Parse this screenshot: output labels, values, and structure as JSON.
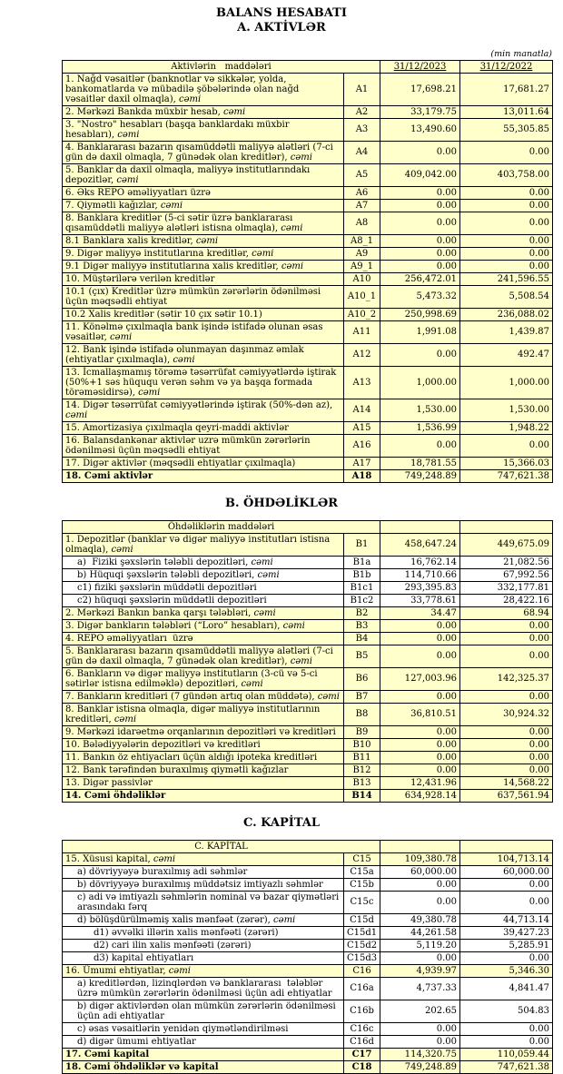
{
  "doc": {
    "title": "BALANS HESABATI",
    "subtitle": "A. AKTİVLƏR",
    "note": "(min manatla)",
    "col_2023": "31/12/2023",
    "col_2022": "31/12/2022"
  },
  "colors": {
    "row_yellow": "#FFFFCC",
    "row_white": "#FFFFFF",
    "border": "#000000"
  },
  "sections": [
    {
      "id": "A",
      "heading": "",
      "table_header": "Aktivlərin   maddələri",
      "show_dates": true,
      "rows": [
        {
          "label": "1. Nağd vəsaitlər (banknotlar və sikkələr, yolda, bankomatlarda və mübadilə şöbələrində olan nağd vəsaitlər daxil olmaqla), ",
          "italic": "cəmi",
          "code": "A1",
          "v2023": "17,698.21",
          "v2022": "17,681.27",
          "bold": false,
          "white": false,
          "indent": 0
        },
        {
          "label": "2. Mərkəzi Bankda müxbir hesab, ",
          "italic": "cəmi",
          "code": "A2",
          "v2023": "33,179.75",
          "v2022": "13,011.64",
          "bold": false,
          "white": false,
          "indent": 0
        },
        {
          "label": "3. \"Nostro\" hesabları (başqa banklardakı müxbir hesabları), ",
          "italic": "cəmi",
          "code": "A3",
          "v2023": "13,490.60",
          "v2022": "55,305.85",
          "bold": false,
          "white": false,
          "indent": 0
        },
        {
          "label": "4. Banklararası bazarın qısamüddətli maliyyə alətləri (7-ci gün də daxil olmaqla, 7 günədək olan kreditlər), ",
          "italic": "cəmi",
          "code": "A4",
          "v2023": "0.00",
          "v2022": "0.00",
          "bold": false,
          "white": false,
          "indent": 0
        },
        {
          "label": "5. Banklar da daxil olmaqla, maliyyə institutlarındakı depozitlər, ",
          "italic": "cəmi",
          "code": "A5",
          "v2023": "409,042.00",
          "v2022": "403,758.00",
          "bold": false,
          "white": false,
          "indent": 0
        },
        {
          "label": "6. Əks REPO əməliyyatları üzrə",
          "italic": "",
          "code": "A6",
          "v2023": "0.00",
          "v2022": "0.00",
          "bold": false,
          "white": false,
          "indent": 0
        },
        {
          "label": "7. Qiymətli kağızlar, ",
          "italic": "cəmi",
          "code": "A7",
          "v2023": "0.00",
          "v2022": "0.00",
          "bold": false,
          "white": false,
          "indent": 0
        },
        {
          "label": "8. Banklara kreditlər (5-ci sətir üzrə banklararası qısamüddətli maliyyə alətləri istisna olmaqla), ",
          "italic": "cəmi",
          "code": "A8",
          "v2023": "0.00",
          "v2022": "0.00",
          "bold": false,
          "white": false,
          "indent": 0
        },
        {
          "label": "8.1 Banklara xalis kreditlər, ",
          "italic": "cəmi",
          "code": "A8_1",
          "v2023": "0.00",
          "v2022": "0.00",
          "bold": false,
          "white": false,
          "indent": 0
        },
        {
          "label": "9. Digər maliyyə institutlarına kreditlər, ",
          "italic": "cəmi",
          "code": "A9",
          "v2023": "0.00",
          "v2022": "0.00",
          "bold": false,
          "white": false,
          "indent": 0
        },
        {
          "label": "9.1 Digər maliyyə institutlarına xalis kreditlər, ",
          "italic": "cəmi",
          "code": "A9_1",
          "v2023": "0.00",
          "v2022": "0.00",
          "bold": false,
          "white": false,
          "indent": 0
        },
        {
          "label": "10. Müştərilərə verilən kreditlər",
          "italic": "",
          "code": "A10",
          "v2023": "256,472.01",
          "v2022": "241,596.55",
          "bold": false,
          "white": false,
          "indent": 0
        },
        {
          "label": "10.1 (çıx) Kreditlər üzrə mümkün zərərlərin ödənilməsi üçün məqsədli ehtiyat",
          "italic": "",
          "code": "A10_1",
          "v2023": "5,473.32",
          "v2022": "5,508.54",
          "bold": false,
          "white": false,
          "indent": 0
        },
        {
          "label": "10.2 Xalis kreditlər (sətir 10 çıx sətir 10.1)",
          "italic": "",
          "code": "A10_2",
          "v2023": "250,998.69",
          "v2022": "236,088.02",
          "bold": false,
          "white": false,
          "indent": 0
        },
        {
          "label": "11. Könəlmə çıxılmaqla bank işində istifadə olunan əsas vəsaitlər, ",
          "italic": "cəmi",
          "code": "A11",
          "v2023": "1,991.08",
          "v2022": "1,439.87",
          "bold": false,
          "white": false,
          "indent": 0
        },
        {
          "label": "12. Bank işində istifadə olunmayan daşınmaz əmlak (ehtiyatlar çıxılmaqla), ",
          "italic": "cəmi",
          "code": "A12",
          "v2023": "0.00",
          "v2022": "492.47",
          "bold": false,
          "white": false,
          "indent": 0
        },
        {
          "label": "13. İcmallaşmamış törəmə təsərrüfat cəmiyyətlərdə iştirak (50%+1 səs hüququ verən səhm və ya başqa formada törəməsidirsə), ",
          "italic": "cəmi",
          "code": "A13",
          "v2023": "1,000.00",
          "v2022": "1,000.00",
          "bold": false,
          "white": false,
          "indent": 0
        },
        {
          "label": "14. Digər təsərrüfat cəmiyyətlərində iştirak (50%-dən az), ",
          "italic": "cəmi",
          "code": "A14",
          "v2023": "1,530.00",
          "v2022": "1,530.00",
          "bold": false,
          "white": false,
          "indent": 0
        },
        {
          "label": "15. Amortizasiya çıxılmaqla qeyri-maddi aktivlər",
          "italic": "",
          "code": "A15",
          "v2023": "1,536.99",
          "v2022": "1,948.22",
          "bold": false,
          "white": false,
          "indent": 0
        },
        {
          "label": "16. Balansdankənar aktivlər uzrə mümkün zərərlərin ödənilməsi üçün məqsədli ehtiyat",
          "italic": "",
          "code": "A16",
          "v2023": "0.00",
          "v2022": "0.00",
          "bold": false,
          "white": false,
          "indent": 0
        },
        {
          "label": "17. Digər aktivlər (məqsədli ehtiyatlar çıxılmaqla)",
          "italic": "",
          "code": "A17",
          "v2023": "18,781.55",
          "v2022": "15,366.03",
          "bold": false,
          "white": false,
          "indent": 0
        },
        {
          "label": "18. Cəmi aktivlər",
          "italic": "",
          "code": "A18",
          "v2023": "749,248.89",
          "v2022": "747,621.38",
          "bold": true,
          "white": false,
          "indent": 0
        }
      ]
    },
    {
      "id": "B",
      "heading": "B. ÖHDƏLİKLƏR",
      "table_header": "Öhdəliklərin maddələri",
      "show_dates": false,
      "rows": [
        {
          "label": "1. Depozitlər (banklar və digər maliyyə institutları istisna olmaqla), ",
          "italic": "cəmi",
          "code": "B1",
          "v2023": "458,647.24",
          "v2022": "449,675.09",
          "bold": false,
          "white": false,
          "indent": 0
        },
        {
          "label": "a)  Fiziki şəxslərin tələbli depozitləri, ",
          "italic": "cəmi",
          "code": "B1a",
          "v2023": "16,762.14",
          "v2022": "21,082.56",
          "bold": false,
          "white": true,
          "indent": 1
        },
        {
          "label": "b) Hüquqi şəxslərin tələbli depozitləri, ",
          "italic": "cəmi",
          "code": "B1b",
          "v2023": "114,710.66",
          "v2022": "67,992.56",
          "bold": false,
          "white": true,
          "indent": 1
        },
        {
          "label": "c1) fiziki şəxslərin müddətli depozitləri",
          "italic": "",
          "code": "B1c1",
          "v2023": "293,395.83",
          "v2022": "332,177.81",
          "bold": false,
          "white": true,
          "indent": 1
        },
        {
          "label": "c2) hüquqi şəxslərin müddətli depozitləri",
          "italic": "",
          "code": "B1c2",
          "v2023": "33,778.61",
          "v2022": "28,422.16",
          "bold": false,
          "white": true,
          "indent": 1
        },
        {
          "label": "2. Mərkəzi Bankın banka qarşı tələbləri, ",
          "italic": "cəmi",
          "code": "B2",
          "v2023": "34.47",
          "v2022": "68.94",
          "bold": false,
          "white": false,
          "indent": 0
        },
        {
          "label": "3. Digər bankların tələbləri (“Loro” hesabları), ",
          "italic": "cəmi",
          "code": "B3",
          "v2023": "0.00",
          "v2022": "0.00",
          "bold": false,
          "white": false,
          "indent": 0
        },
        {
          "label": "4. REPO əməliyyatları  üzrə",
          "italic": "",
          "code": "B4",
          "v2023": "0.00",
          "v2022": "0.00",
          "bold": false,
          "white": false,
          "indent": 0
        },
        {
          "label": "5. Banklararası bazarın qısamüddətli maliyyə alətləri (7-ci gün də daxil olmaqla, 7 günədək olan kreditlər), ",
          "italic": "cəmi",
          "code": "B5",
          "v2023": "0.00",
          "v2022": "0.00",
          "bold": false,
          "white": false,
          "indent": 0
        },
        {
          "label": "6. Bankların və digər maliyyə institutların (3-cü və 5-ci sətirlər istisna edilməklə) depozitləri, ",
          "italic": "cəmi",
          "code": "B6",
          "v2023": "127,003.96",
          "v2022": "142,325.37",
          "bold": false,
          "white": false,
          "indent": 0
        },
        {
          "label": "7. Bankların kreditləri (7 gündən artıq olan müddətə), ",
          "italic": "cəmi",
          "code": "B7",
          "v2023": "0.00",
          "v2022": "0.00",
          "bold": false,
          "white": false,
          "indent": 0
        },
        {
          "label": "8. Banklar istisna olmaqla, digər maliyyə institutlarının kreditləri, ",
          "italic": "cəmi",
          "code": "B8",
          "v2023": "36,810.51",
          "v2022": "30,924.32",
          "bold": false,
          "white": false,
          "indent": 0
        },
        {
          "label": "9. Mərkəzi idarəetmə orqanlarının depozitləri və kreditləri",
          "italic": "",
          "code": "B9",
          "v2023": "0.00",
          "v2022": "0.00",
          "bold": false,
          "white": false,
          "indent": 0
        },
        {
          "label": "10. Bələdiyyələrin depozitləri və kreditləri",
          "italic": "",
          "code": "B10",
          "v2023": "0.00",
          "v2022": "0.00",
          "bold": false,
          "white": false,
          "indent": 0
        },
        {
          "label": "11. Bankın öz ehtiyacları üçün aldığı ipoteka kreditləri",
          "italic": "",
          "code": "B11",
          "v2023": "0.00",
          "v2022": "0.00",
          "bold": false,
          "white": false,
          "indent": 0
        },
        {
          "label": "12. Bank tərəfindən buraxılmış qiymətli kağızlar",
          "italic": "",
          "code": "B12",
          "v2023": "0.00",
          "v2022": "0.00",
          "bold": false,
          "white": false,
          "indent": 0
        },
        {
          "label": "13. Digər passivlər",
          "italic": "",
          "code": "B13",
          "v2023": "12,431.96",
          "v2022": "14,568.22",
          "bold": false,
          "white": false,
          "indent": 0
        },
        {
          "label": "14. Cəmi öhdəliklər",
          "italic": "",
          "code": "B14",
          "v2023": "634,928.14",
          "v2022": "637,561.94",
          "bold": true,
          "white": false,
          "indent": 0
        }
      ]
    },
    {
      "id": "C",
      "heading": "C. KAPİTAL",
      "table_header": "C. KAPİTAL",
      "show_dates": false,
      "rows": [
        {
          "label": "15. Xüsusi kapital, ",
          "italic": "cəmi",
          "code": "C15",
          "v2023": "109,380.78",
          "v2022": "104,713.14",
          "bold": false,
          "white": false,
          "indent": 0
        },
        {
          "label": "a) dövriyyəyə buraxılmış adi səhmlər",
          "italic": "",
          "code": "C15a",
          "v2023": "60,000.00",
          "v2022": "60,000.00",
          "bold": false,
          "white": true,
          "indent": 1
        },
        {
          "label": "b) dövriyyəyə buraxılmış müddətsiz imtiyazlı səhmlər",
          "italic": "",
          "code": "C15b",
          "v2023": "0.00",
          "v2022": "0.00",
          "bold": false,
          "white": true,
          "indent": 1
        },
        {
          "label": "c) adi və imtiyazlı səhmlərin nominal və bazar qiymətləri arasındakı fərq",
          "italic": "",
          "code": "C15c",
          "v2023": "0.00",
          "v2022": "0.00",
          "bold": false,
          "white": true,
          "indent": 1
        },
        {
          "label": "d) bölüşdürülməmiş xalis mənfəət (zərər), ",
          "italic": "cəmi",
          "code": "C15d",
          "v2023": "49,380.78",
          "v2022": "44,713.14",
          "bold": false,
          "white": true,
          "indent": 1
        },
        {
          "label": "d1) əvvəlki illərin xalis mənfəəti (zərəri)",
          "italic": "",
          "code": "C15d1",
          "v2023": "44,261.58",
          "v2022": "39,427.23",
          "bold": false,
          "white": true,
          "indent": 2
        },
        {
          "label": "d2) cari ilin xalis mənfəəti (zərəri)",
          "italic": "",
          "code": "C15d2",
          "v2023": "5,119.20",
          "v2022": "5,285.91",
          "bold": false,
          "white": true,
          "indent": 2
        },
        {
          "label": "d3) kapital ehtiyatları",
          "italic": "",
          "code": "C15d3",
          "v2023": "0.00",
          "v2022": "0.00",
          "bold": false,
          "white": true,
          "indent": 2
        },
        {
          "label": "16. Ümumi ehtiyatlar, ",
          "italic": "cəmi",
          "code": "C16",
          "v2023": "4,939.97",
          "v2022": "5,346.30",
          "bold": false,
          "white": false,
          "indent": 0
        },
        {
          "label": "a) kreditlərdən, lizinqlərdən və banklararası  tələblər üzrə mümkün zərərlərin ödənilməsi üçün adi ehtiyatlar",
          "italic": "",
          "code": "C16a",
          "v2023": "4,737.33",
          "v2022": "4,841.47",
          "bold": false,
          "white": true,
          "indent": 1
        },
        {
          "label": "b) digər aktivlərdən olan mümkün zərərlərin ödənilməsi üçün adi ehtiyatlar",
          "italic": "",
          "code": "C16b",
          "v2023": "202.65",
          "v2022": "504.83",
          "bold": false,
          "white": true,
          "indent": 1
        },
        {
          "label": "c) əsas vəsaitlərin yenidən qiymətləndirilməsi",
          "italic": "",
          "code": "C16c",
          "v2023": "0.00",
          "v2022": "0.00",
          "bold": false,
          "white": true,
          "indent": 1
        },
        {
          "label": "d) digər ümumi ehtiyatlar",
          "italic": "",
          "code": "C16d",
          "v2023": "0.00",
          "v2022": "0.00",
          "bold": false,
          "white": true,
          "indent": 1
        },
        {
          "label": "17. Cəmi kapital",
          "italic": "",
          "code": "C17",
          "v2023": "114,320.75",
          "v2022": "110,059.44",
          "bold": true,
          "white": false,
          "indent": 0
        },
        {
          "label": "18. Cəmi öhdəliklər və kapital",
          "italic": "",
          "code": "C18",
          "v2023": "749,248.89",
          "v2022": "747,621.38",
          "bold": true,
          "white": false,
          "indent": 0
        }
      ]
    }
  ]
}
